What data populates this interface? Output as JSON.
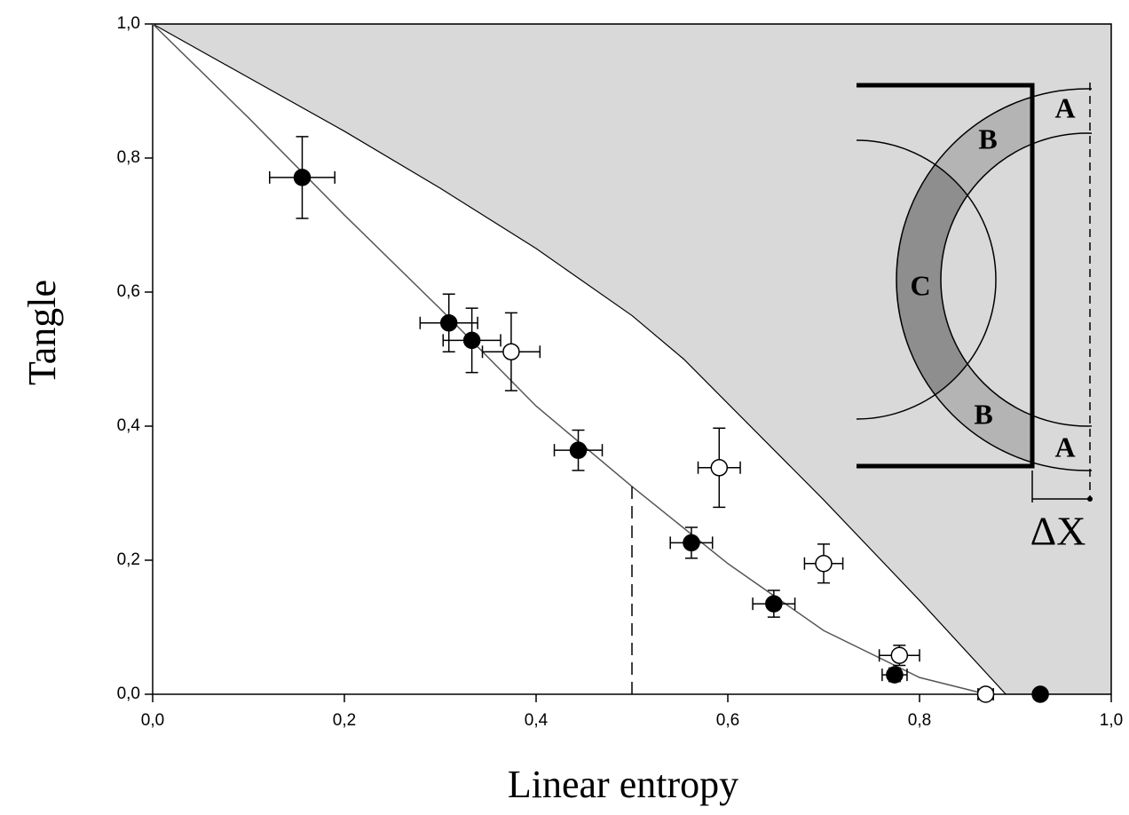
{
  "chart_data": {
    "type": "scatter",
    "x_label": "Linear entropy",
    "y_label": "Tangle",
    "xlim": [
      0,
      1
    ],
    "ylim": [
      0,
      1
    ],
    "xticks": [
      {
        "value": 0,
        "label": "0,0"
      },
      {
        "value": 0.2,
        "label": "0,2"
      },
      {
        "value": 0.4,
        "label": "0,4"
      },
      {
        "value": 0.6,
        "label": "0,6"
      },
      {
        "value": 0.8,
        "label": "0,8"
      },
      {
        "value": 1,
        "label": "1,0"
      }
    ],
    "yticks": [
      {
        "value": 0,
        "label": "0,0"
      },
      {
        "value": 0.2,
        "label": "0,2"
      },
      {
        "value": 0.4,
        "label": "0,4"
      },
      {
        "value": 0.6,
        "label": "0,6"
      },
      {
        "value": 0.8,
        "label": "0,8"
      },
      {
        "value": 1,
        "label": "1,0"
      }
    ],
    "series": [
      {
        "color": "#000000",
        "marker": "filled",
        "x": [
          0.156,
          0.309,
          0.333,
          0.444,
          0.562,
          0.648,
          0.774,
          0.926
        ],
        "values": [
          0.771,
          0.554,
          0.528,
          0.364,
          0.226,
          0.135,
          0.029,
          0
        ],
        "x_err": [
          0.034,
          0.03,
          0.03,
          0.025,
          0.022,
          0.022,
          0.013,
          0
        ],
        "y_err": [
          0.061,
          0.043,
          0.048,
          0.03,
          0.023,
          0.02,
          0.01,
          0
        ]
      },
      {
        "color": "#000000",
        "marker": "open",
        "x": [
          0.374,
          0.591,
          0.7,
          0.779,
          0.869
        ],
        "values": [
          0.511,
          0.338,
          0.195,
          0.058,
          0
        ],
        "x_err": [
          0.03,
          0.022,
          0.02,
          0.021,
          0.008
        ],
        "y_err": [
          0.058,
          0.059,
          0.029,
          0.015,
          0
        ]
      }
    ],
    "fit_curve": {
      "color": "#555555",
      "x": [
        0,
        0.1,
        0.2,
        0.3,
        0.4,
        0.5,
        0.6,
        0.7,
        0.8,
        0.87
      ],
      "values": [
        1,
        0.86,
        0.715,
        0.575,
        0.43,
        0.31,
        0.195,
        0.095,
        0.025,
        0
      ]
    },
    "boundary": {
      "color": "#d9d9d9",
      "x": [
        0,
        0.1,
        0.2,
        0.3,
        0.4,
        0.5,
        0.554,
        0.7,
        0.8,
        0.89
      ],
      "values": [
        1,
        0.92,
        0.84,
        0.755,
        0.665,
        0.565,
        0.5,
        0.29,
        0.14,
        0
      ]
    },
    "marker_line": {
      "x": 0.5,
      "values": [
        0,
        0.31
      ]
    },
    "inset_labels": [
      "A",
      "B",
      "C",
      "B",
      "A",
      "ΔX"
    ]
  }
}
